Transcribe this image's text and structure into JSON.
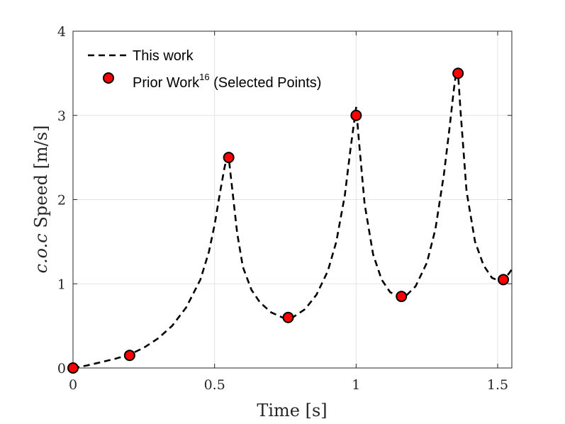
{
  "chart_data": {
    "type": "line",
    "xlabel": "Time [s]",
    "ylabel_italic": "c.o.c",
    "ylabel_rest": " Speed [m/s]",
    "xlim": [
      0,
      1.55
    ],
    "ylim": [
      0,
      4
    ],
    "xticks": [
      0,
      0.5,
      1,
      1.5
    ],
    "xtick_labels": [
      "0",
      "0.5",
      "1",
      "1.5"
    ],
    "yticks": [
      0,
      1,
      2,
      3,
      4
    ],
    "ytick_labels": [
      "0",
      "1",
      "2",
      "3",
      "4"
    ],
    "grid": true,
    "legend_position": "top-left",
    "series": [
      {
        "name": "This work",
        "style": "dashed-line",
        "color": "#000000",
        "x": [
          0,
          0.05,
          0.1,
          0.15,
          0.2,
          0.25,
          0.3,
          0.35,
          0.4,
          0.45,
          0.48,
          0.5,
          0.52,
          0.535,
          0.545,
          0.55,
          0.56,
          0.58,
          0.6,
          0.63,
          0.66,
          0.7,
          0.74,
          0.78,
          0.82,
          0.86,
          0.9,
          0.93,
          0.96,
          0.98,
          0.99,
          1.0,
          1.01,
          1.03,
          1.06,
          1.09,
          1.12,
          1.15,
          1.18,
          1.21,
          1.25,
          1.28,
          1.31,
          1.33,
          1.345,
          1.355,
          1.36,
          1.37,
          1.39,
          1.42,
          1.45,
          1.48,
          1.51,
          1.53,
          1.55
        ],
        "y": [
          0,
          0.03,
          0.07,
          0.11,
          0.16,
          0.24,
          0.35,
          0.5,
          0.72,
          1.05,
          1.38,
          1.7,
          2.1,
          2.38,
          2.52,
          2.5,
          2.2,
          1.6,
          1.2,
          0.93,
          0.78,
          0.66,
          0.6,
          0.61,
          0.7,
          0.87,
          1.15,
          1.5,
          2.05,
          2.6,
          2.85,
          3.1,
          2.7,
          1.95,
          1.35,
          1.05,
          0.9,
          0.85,
          0.87,
          0.97,
          1.25,
          1.65,
          2.3,
          2.85,
          3.3,
          3.55,
          3.5,
          3.0,
          2.1,
          1.5,
          1.22,
          1.07,
          1.03,
          1.08,
          1.17
        ]
      },
      {
        "name_main": "Prior Work",
        "name_sup": "16",
        "name_suffix": " (Selected Points)",
        "style": "markers",
        "color": "#ff0000",
        "x": [
          0,
          0.2,
          0.55,
          0.76,
          1.0,
          1.16,
          1.36,
          1.52
        ],
        "y": [
          0,
          0.15,
          2.5,
          0.6,
          3.0,
          0.85,
          3.5,
          1.05
        ]
      }
    ]
  }
}
